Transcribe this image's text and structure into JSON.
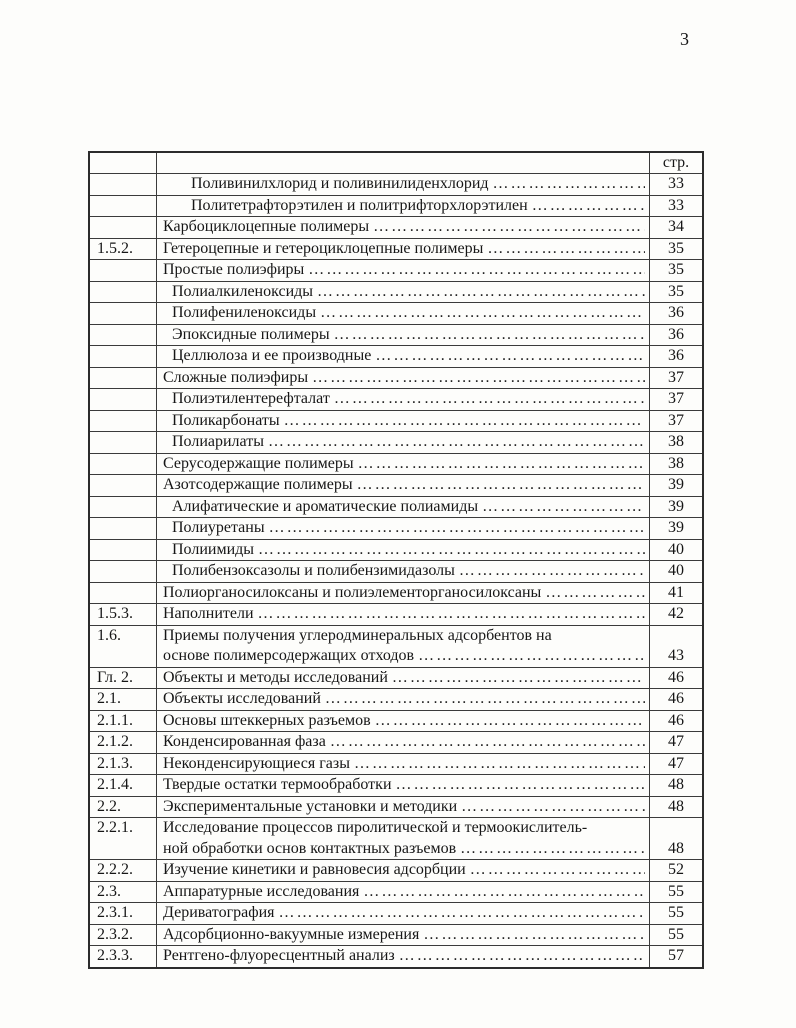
{
  "page": {
    "number": "3"
  },
  "toc": {
    "header_page_label": "стр.",
    "rows": [
      {
        "num": "",
        "indent": 2,
        "lines": [
          "Поливинилхлорид и поливинилиденхлорид"
        ],
        "page": "33"
      },
      {
        "num": "",
        "indent": 2,
        "lines": [
          "Политетрафторэтилен и политрифторхлорэтилен"
        ],
        "page": "33"
      },
      {
        "num": "",
        "indent": 0,
        "lines": [
          "Карбоциклоцепные полимеры"
        ],
        "page": "34"
      },
      {
        "num": "1.5.2.",
        "indent": 0,
        "lines": [
          "Гетероцепные и гетероциклоцепные полимеры"
        ],
        "page": "35"
      },
      {
        "num": "",
        "indent": 0,
        "lines": [
          "Простые полиэфиры"
        ],
        "page": "35"
      },
      {
        "num": "",
        "indent": 1,
        "lines": [
          "Полиалкиленоксиды"
        ],
        "page": "35"
      },
      {
        "num": "",
        "indent": 1,
        "lines": [
          "Полифениленоксиды"
        ],
        "page": "36"
      },
      {
        "num": "",
        "indent": 1,
        "lines": [
          "Эпоксидные полимеры"
        ],
        "page": "36"
      },
      {
        "num": "",
        "indent": 1,
        "lines": [
          "Целлюлоза и ее производные"
        ],
        "page": "36"
      },
      {
        "num": "",
        "indent": 0,
        "lines": [
          "Сложные полиэфиры"
        ],
        "page": "37"
      },
      {
        "num": "",
        "indent": 1,
        "lines": [
          "Полиэтилентерефталат"
        ],
        "page": "37"
      },
      {
        "num": "",
        "indent": 1,
        "lines": [
          "Поликарбонаты"
        ],
        "page": "37"
      },
      {
        "num": "",
        "indent": 1,
        "lines": [
          "Полиарилаты"
        ],
        "page": "38"
      },
      {
        "num": "",
        "indent": 0,
        "lines": [
          "Серусодержащие полимеры"
        ],
        "page": "38"
      },
      {
        "num": "",
        "indent": 0,
        "lines": [
          "Азотсодержащие полимеры"
        ],
        "page": "39"
      },
      {
        "num": "",
        "indent": 1,
        "lines": [
          "Алифатические и ароматические полиамиды"
        ],
        "page": "39"
      },
      {
        "num": "",
        "indent": 1,
        "lines": [
          "Полиуретаны"
        ],
        "page": "39"
      },
      {
        "num": "",
        "indent": 1,
        "lines": [
          "Полиимиды"
        ],
        "page": "40"
      },
      {
        "num": "",
        "indent": 1,
        "lines": [
          "Полибензоксазолы и полибензимидазолы"
        ],
        "page": "40"
      },
      {
        "num": "",
        "indent": 0,
        "lines": [
          "Полиорганосилоксаны и полиэлементорганосилоксаны"
        ],
        "page": "41"
      },
      {
        "num": "1.5.3.",
        "indent": 0,
        "lines": [
          "Наполнители"
        ],
        "page": "42"
      },
      {
        "num": "1.6.",
        "indent": 0,
        "lines": [
          "Приемы получения углеродминеральных адсорбентов на",
          "основе полимерсодержащих отходов"
        ],
        "page": "43"
      },
      {
        "num": "Гл. 2.",
        "indent": 0,
        "lines": [
          "Объекты и методы исследований"
        ],
        "page": "46"
      },
      {
        "num": "2.1.",
        "indent": 0,
        "lines": [
          "Объекты исследований"
        ],
        "page": "46"
      },
      {
        "num": "2.1.1.",
        "indent": 0,
        "lines": [
          "Основы штеккерных разъемов"
        ],
        "page": "46"
      },
      {
        "num": "2.1.2.",
        "indent": 0,
        "lines": [
          "Конденсированная фаза"
        ],
        "page": "47"
      },
      {
        "num": "2.1.3.",
        "indent": 0,
        "lines": [
          "Неконденсирующиеся газы"
        ],
        "page": "47"
      },
      {
        "num": "2.1.4.",
        "indent": 0,
        "lines": [
          "Твердые остатки термообработки"
        ],
        "page": "48"
      },
      {
        "num": "2.2.",
        "indent": 0,
        "lines": [
          "Экспериментальные установки и методики"
        ],
        "page": "48"
      },
      {
        "num": "2.2.1.",
        "indent": 0,
        "lines": [
          "Исследование процессов пиролитической и термоокислитель-",
          "ной обработки основ контактных разъемов"
        ],
        "page": "48"
      },
      {
        "num": "2.2.2.",
        "indent": 0,
        "lines": [
          "Изучение кинетики и равновесия адсорбции"
        ],
        "page": "52"
      },
      {
        "num": "2.3.",
        "indent": 0,
        "lines": [
          "Аппаратурные исследования"
        ],
        "page": "55"
      },
      {
        "num": "2.3.1.",
        "indent": 0,
        "lines": [
          "Дериватография"
        ],
        "page": "55"
      },
      {
        "num": "2.3.2.",
        "indent": 0,
        "lines": [
          "Адсорбционно-вакуумные измерения"
        ],
        "page": "55"
      },
      {
        "num": "2.3.3.",
        "indent": 0,
        "lines": [
          "Рентгено-флуоресцентный анализ"
        ],
        "page": "57"
      }
    ]
  }
}
